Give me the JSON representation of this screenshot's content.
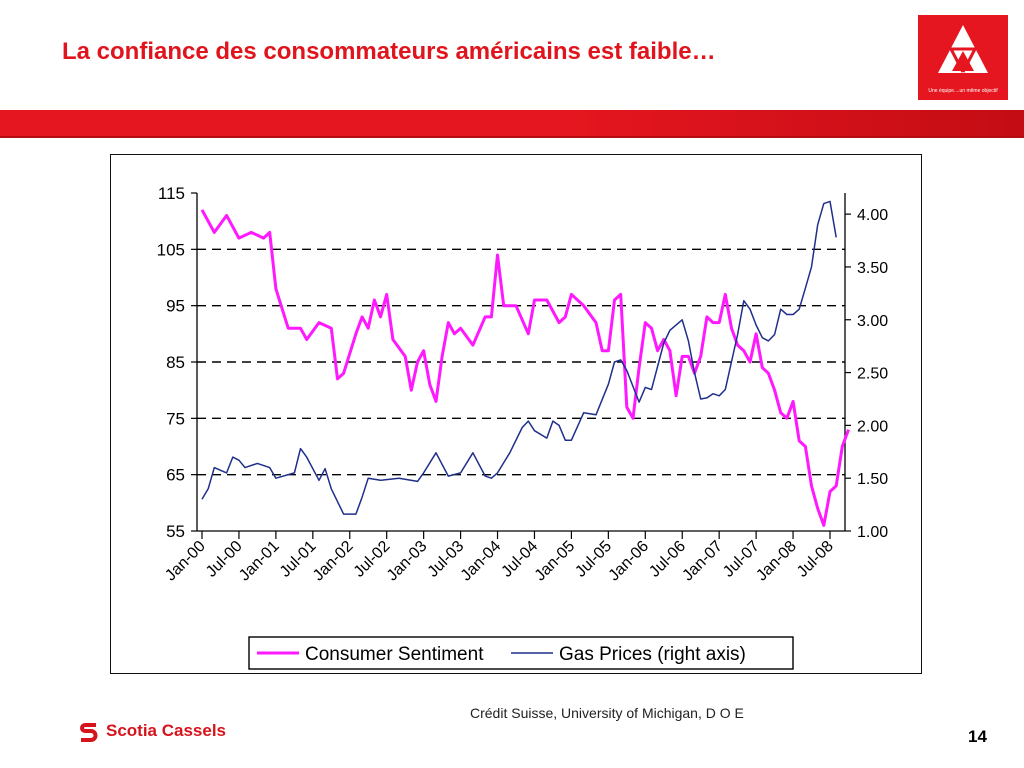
{
  "slide": {
    "title": "La confiance des consommateurs américains est faible…",
    "logo_tagline": "Une équipe....un même objectif",
    "source": "Crédit Suisse, University of Michigan, D O E",
    "brand": "Scotia Cassels",
    "page_number": "14"
  },
  "colors": {
    "title": "#e0141c",
    "band": "#e5161f",
    "sentiment_line": "#ff19ff",
    "gas_line": "#1f2f8a"
  },
  "chart_data": {
    "type": "line",
    "title": "",
    "xlabel": "",
    "ylabel": "",
    "y_left": {
      "lim": [
        55,
        115
      ],
      "ticks": [
        "55",
        "65",
        "75",
        "85",
        "95",
        "105",
        "115"
      ]
    },
    "y_right": {
      "lim": [
        1.0,
        4.2
      ],
      "ticks": [
        "1.00",
        "1.50",
        "2.00",
        "2.50",
        "3.00",
        "3.50",
        "4.00"
      ]
    },
    "grid": "dashed horizontal lines at 65, 75, 85, 95, 105",
    "legend_placement": "bottom-center",
    "x_ticks": [
      "Jan-00",
      "Jul-00",
      "Jan-01",
      "Jul-01",
      "Jan-02",
      "Jul-02",
      "Jan-03",
      "Jul-03",
      "Jan-04",
      "Jul-04",
      "Jan-05",
      "Jul-05",
      "Jan-06",
      "Jul-06",
      "Jan-07",
      "Jul-07",
      "Jan-08",
      "Jul-08"
    ],
    "series": [
      {
        "name": "Consumer Sentiment",
        "axis": "left",
        "color": "#ff19ff",
        "points": [
          [
            "2000-01",
            112
          ],
          [
            "2000-03",
            108
          ],
          [
            "2000-05",
            111
          ],
          [
            "2000-07",
            107
          ],
          [
            "2000-09",
            108
          ],
          [
            "2000-11",
            107
          ],
          [
            "2000-12",
            108
          ],
          [
            "2001-01",
            98
          ],
          [
            "2001-03",
            91
          ],
          [
            "2001-05",
            91
          ],
          [
            "2001-06",
            89
          ],
          [
            "2001-08",
            92
          ],
          [
            "2001-10",
            91
          ],
          [
            "2001-11",
            82
          ],
          [
            "2001-12",
            83
          ],
          [
            "2002-02",
            90
          ],
          [
            "2002-03",
            93
          ],
          [
            "2002-04",
            91
          ],
          [
            "2002-05",
            96
          ],
          [
            "2002-06",
            93
          ],
          [
            "2002-07",
            97
          ],
          [
            "2002-08",
            89
          ],
          [
            "2002-10",
            86
          ],
          [
            "2002-11",
            80
          ],
          [
            "2002-12",
            85
          ],
          [
            "2003-01",
            87
          ],
          [
            "2003-02",
            81
          ],
          [
            "2003-03",
            78
          ],
          [
            "2003-04",
            86
          ],
          [
            "2003-05",
            92
          ],
          [
            "2003-06",
            90
          ],
          [
            "2003-07",
            91
          ],
          [
            "2003-09",
            88
          ],
          [
            "2003-11",
            93
          ],
          [
            "2003-12",
            93
          ],
          [
            "2004-01",
            104
          ],
          [
            "2004-02",
            95
          ],
          [
            "2004-04",
            95
          ],
          [
            "2004-06",
            90
          ],
          [
            "2004-07",
            96
          ],
          [
            "2004-09",
            96
          ],
          [
            "2004-11",
            92
          ],
          [
            "2004-12",
            93
          ],
          [
            "2005-01",
            97
          ],
          [
            "2005-03",
            95
          ],
          [
            "2005-05",
            92
          ],
          [
            "2005-06",
            87
          ],
          [
            "2005-07",
            87
          ],
          [
            "2005-08",
            96
          ],
          [
            "2005-09",
            97
          ],
          [
            "2005-10",
            77
          ],
          [
            "2005-11",
            75
          ],
          [
            "2005-12",
            84
          ],
          [
            "2006-01",
            92
          ],
          [
            "2006-02",
            91
          ],
          [
            "2006-03",
            87
          ],
          [
            "2006-04",
            89
          ],
          [
            "2006-05",
            87
          ],
          [
            "2006-06",
            79
          ],
          [
            "2006-07",
            86
          ],
          [
            "2006-08",
            86
          ],
          [
            "2006-09",
            83
          ],
          [
            "2006-10",
            86
          ],
          [
            "2006-11",
            93
          ],
          [
            "2006-12",
            92
          ],
          [
            "2007-01",
            92
          ],
          [
            "2007-02",
            97
          ],
          [
            "2007-03",
            91
          ],
          [
            "2007-04",
            88
          ],
          [
            "2007-05",
            87
          ],
          [
            "2007-06",
            85
          ],
          [
            "2007-07",
            90
          ],
          [
            "2007-08",
            84
          ],
          [
            "2007-09",
            83
          ],
          [
            "2007-10",
            80
          ],
          [
            "2007-11",
            76
          ],
          [
            "2007-12",
            75
          ],
          [
            "2008-01",
            78
          ],
          [
            "2008-02",
            71
          ],
          [
            "2008-03",
            70
          ],
          [
            "2008-04",
            63
          ],
          [
            "2008-05",
            59
          ],
          [
            "2008-06",
            56
          ],
          [
            "2008-07",
            62
          ],
          [
            "2008-08",
            63
          ],
          [
            "2008-09",
            70
          ],
          [
            "2008-10",
            73
          ]
        ]
      },
      {
        "name": "Gas Prices (right axis)",
        "axis": "right",
        "color": "#1f2f8a",
        "points": [
          [
            "2000-01",
            1.3
          ],
          [
            "2000-02",
            1.4
          ],
          [
            "2000-03",
            1.6
          ],
          [
            "2000-05",
            1.55
          ],
          [
            "2000-06",
            1.7
          ],
          [
            "2000-07",
            1.67
          ],
          [
            "2000-08",
            1.6
          ],
          [
            "2000-10",
            1.64
          ],
          [
            "2000-12",
            1.6
          ],
          [
            "2001-01",
            1.5
          ],
          [
            "2001-04",
            1.55
          ],
          [
            "2001-05",
            1.78
          ],
          [
            "2001-06",
            1.7
          ],
          [
            "2001-08",
            1.48
          ],
          [
            "2001-09",
            1.59
          ],
          [
            "2001-10",
            1.4
          ],
          [
            "2001-12",
            1.16
          ],
          [
            "2002-02",
            1.16
          ],
          [
            "2002-03",
            1.32
          ],
          [
            "2002-04",
            1.5
          ],
          [
            "2002-06",
            1.48
          ],
          [
            "2002-09",
            1.5
          ],
          [
            "2002-12",
            1.47
          ],
          [
            "2003-01",
            1.55
          ],
          [
            "2003-03",
            1.74
          ],
          [
            "2003-05",
            1.52
          ],
          [
            "2003-07",
            1.55
          ],
          [
            "2003-09",
            1.74
          ],
          [
            "2003-11",
            1.52
          ],
          [
            "2003-12",
            1.5
          ],
          [
            "2004-01",
            1.55
          ],
          [
            "2004-03",
            1.74
          ],
          [
            "2004-05",
            1.98
          ],
          [
            "2004-06",
            2.04
          ],
          [
            "2004-07",
            1.95
          ],
          [
            "2004-09",
            1.88
          ],
          [
            "2004-10",
            2.04
          ],
          [
            "2004-11",
            2.0
          ],
          [
            "2004-12",
            1.86
          ],
          [
            "2005-01",
            1.86
          ],
          [
            "2005-03",
            2.12
          ],
          [
            "2005-05",
            2.1
          ],
          [
            "2005-07",
            2.39
          ],
          [
            "2005-08",
            2.6
          ],
          [
            "2005-09",
            2.62
          ],
          [
            "2005-10",
            2.52
          ],
          [
            "2005-12",
            2.22
          ],
          [
            "2006-01",
            2.36
          ],
          [
            "2006-02",
            2.34
          ],
          [
            "2006-04",
            2.78
          ],
          [
            "2006-05",
            2.9
          ],
          [
            "2006-07",
            3.0
          ],
          [
            "2006-08",
            2.8
          ],
          [
            "2006-09",
            2.5
          ],
          [
            "2006-10",
            2.25
          ],
          [
            "2006-11",
            2.26
          ],
          [
            "2006-12",
            2.3
          ],
          [
            "2007-01",
            2.28
          ],
          [
            "2007-02",
            2.34
          ],
          [
            "2007-04",
            2.86
          ],
          [
            "2007-05",
            3.18
          ],
          [
            "2007-06",
            3.1
          ],
          [
            "2007-07",
            2.95
          ],
          [
            "2007-08",
            2.83
          ],
          [
            "2007-09",
            2.8
          ],
          [
            "2007-10",
            2.86
          ],
          [
            "2007-11",
            3.1
          ],
          [
            "2007-12",
            3.05
          ],
          [
            "2008-01",
            3.05
          ],
          [
            "2008-02",
            3.1
          ],
          [
            "2008-03",
            3.3
          ],
          [
            "2008-04",
            3.5
          ],
          [
            "2008-05",
            3.9
          ],
          [
            "2008-06",
            4.1
          ],
          [
            "2008-07",
            4.12
          ],
          [
            "2008-08",
            3.78
          ]
        ]
      }
    ]
  }
}
